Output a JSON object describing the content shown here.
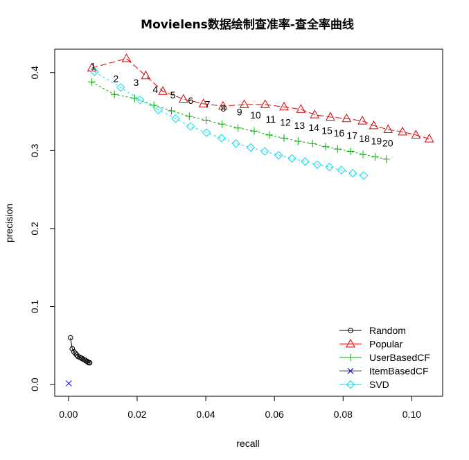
{
  "chart_data": {
    "type": "line",
    "title": "Movielens数据绘制查准率-查全率曲线",
    "xlabel": "recall",
    "ylabel": "precision",
    "xlim": [
      -0.004,
      0.109
    ],
    "ylim": [
      -0.015,
      0.43
    ],
    "xticks": [
      0.0,
      0.02,
      0.04,
      0.06,
      0.08,
      0.1
    ],
    "xtick_labels": [
      "0.00",
      "0.02",
      "0.04",
      "0.06",
      "0.08",
      "0.10"
    ],
    "yticks": [
      0.0,
      0.1,
      0.2,
      0.3,
      0.4
    ],
    "ytick_labels": [
      "0.0",
      "0.1",
      "0.2",
      "0.3",
      "0.4"
    ],
    "grid": false,
    "legend_position": "bottom-right",
    "series": [
      {
        "name": "Random",
        "color": "#000000",
        "marker": "circle",
        "x": [
          0.0006,
          0.0011,
          0.0016,
          0.002,
          0.0024,
          0.0028,
          0.0033,
          0.0037,
          0.0041,
          0.0045,
          0.0049,
          0.0053,
          0.0056,
          0.0059,
          0.0062
        ],
        "y": [
          0.06,
          0.046,
          0.042,
          0.04,
          0.038,
          0.036,
          0.035,
          0.034,
          0.033,
          0.032,
          0.031,
          0.03,
          0.029,
          0.028,
          0.028
        ]
      },
      {
        "name": "Popular",
        "color": "#DF0000",
        "marker": "triangle",
        "x": [
          0.0068,
          0.0169,
          0.0225,
          0.0275,
          0.0335,
          0.0393,
          0.045,
          0.0512,
          0.0573,
          0.0628,
          0.0677,
          0.0717,
          0.0763,
          0.081,
          0.0856,
          0.0889,
          0.0931,
          0.0973,
          0.1012,
          0.1051
        ],
        "y": [
          0.406,
          0.418,
          0.396,
          0.376,
          0.366,
          0.36,
          0.357,
          0.359,
          0.359,
          0.356,
          0.353,
          0.346,
          0.343,
          0.341,
          0.338,
          0.332,
          0.327,
          0.324,
          0.32,
          0.315
        ]
      },
      {
        "name": "UserBasedCF",
        "color": "#00B000",
        "marker": "plus",
        "x": [
          0.0068,
          0.0134,
          0.0193,
          0.0249,
          0.03,
          0.0352,
          0.0401,
          0.0447,
          0.0494,
          0.0541,
          0.0585,
          0.0628,
          0.0669,
          0.0711,
          0.0749,
          0.0784,
          0.0822,
          0.0858,
          0.0893,
          0.0926
        ],
        "y": [
          0.388,
          0.372,
          0.367,
          0.358,
          0.351,
          0.344,
          0.339,
          0.334,
          0.329,
          0.325,
          0.32,
          0.316,
          0.312,
          0.309,
          0.305,
          0.302,
          0.299,
          0.295,
          0.292,
          0.289
        ]
      },
      {
        "name": "ItemBasedCF",
        "color": "#0000CC",
        "marker": "cross",
        "x": [
          0.0001
        ],
        "y": [
          0.0015
        ]
      },
      {
        "name": "SVD",
        "color": "#00DDEE",
        "marker": "diamond",
        "x": [
          0.0076,
          0.0152,
          0.0209,
          0.0262,
          0.0312,
          0.0356,
          0.0402,
          0.0446,
          0.0488,
          0.0531,
          0.0572,
          0.0612,
          0.0651,
          0.0689,
          0.0725,
          0.076,
          0.0795,
          0.0828,
          0.086
        ],
        "y": [
          0.401,
          0.381,
          0.365,
          0.352,
          0.341,
          0.331,
          0.323,
          0.316,
          0.309,
          0.304,
          0.299,
          0.294,
          0.29,
          0.286,
          0.282,
          0.279,
          0.275,
          0.271,
          0.268
        ]
      }
    ],
    "annotations": {
      "labels": [
        "1",
        "2",
        "3",
        "4",
        "5",
        "6",
        "7",
        "8",
        "9",
        "10",
        "11",
        "12",
        "13",
        "14",
        "15",
        "16",
        "17",
        "18",
        "19",
        "20"
      ],
      "x": [
        0.0068,
        0.0134,
        0.0193,
        0.0249,
        0.03,
        0.0352,
        0.0401,
        0.0447,
        0.0494,
        0.0541,
        0.0585,
        0.0628,
        0.0669,
        0.0711,
        0.0749,
        0.0784,
        0.0822,
        0.0858,
        0.0893,
        0.0926
      ],
      "y": [
        0.388,
        0.372,
        0.367,
        0.358,
        0.351,
        0.344,
        0.339,
        0.334,
        0.329,
        0.325,
        0.32,
        0.316,
        0.312,
        0.309,
        0.305,
        0.302,
        0.299,
        0.295,
        0.292,
        0.289
      ]
    }
  }
}
